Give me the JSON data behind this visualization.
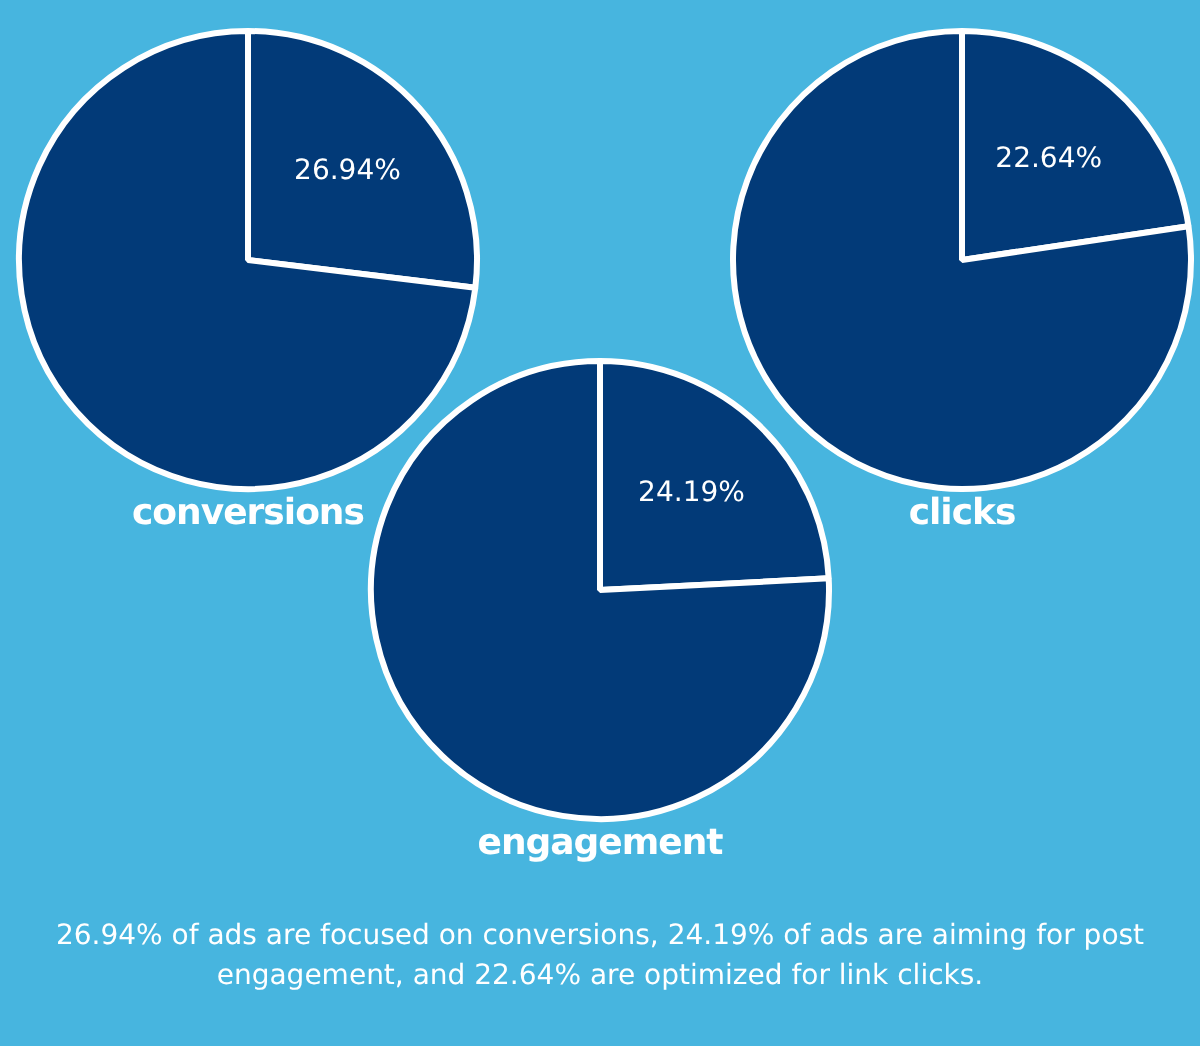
{
  "chart_data": [
    {
      "type": "pie",
      "title": "conversions",
      "categories": [
        null,
        null
      ],
      "values": [
        26.94,
        73.06
      ],
      "colors": [
        "#023a78",
        "#023a78"
      ],
      "value_labels": [
        "26.94%",
        null
      ]
    },
    {
      "type": "pie",
      "title": "clicks",
      "categories": [
        null,
        null
      ],
      "values": [
        22.64,
        77.36
      ],
      "colors": [
        "#023a78",
        "#023a78"
      ],
      "value_labels": [
        "22.64%",
        null
      ]
    },
    {
      "type": "pie",
      "title": "engagement",
      "categories": [
        null,
        null
      ],
      "values": [
        24.19,
        75.81
      ],
      "colors": [
        "#023a78",
        "#023a78"
      ],
      "value_labels": [
        "24.19%",
        null
      ],
      "annotations": [
        "26.94% of ads are focused on conversions, 24.19% of ads are aiming for post engagement, and 22.64% are optimized for link clicks."
      ]
    }
  ]
}
